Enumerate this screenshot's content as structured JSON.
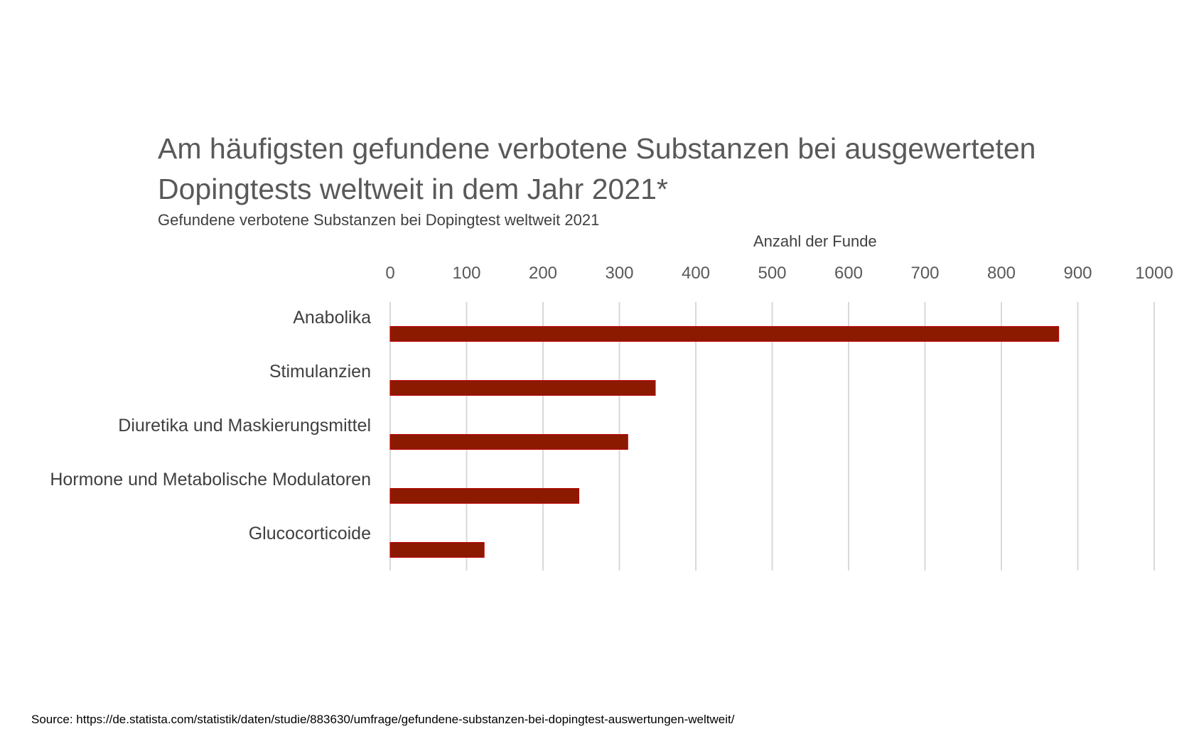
{
  "chart_data": {
    "type": "bar",
    "orientation": "horizontal",
    "title": "Am häufigsten gefundene verbotene Substanzen bei ausgewerteten Dopingtests weltweit in dem Jahr 2021*",
    "title_lines": [
      "Am häufigsten gefundene verbotene Substanzen bei ausgewerteten",
      "Dopingtests weltweit in dem Jahr 2021*"
    ],
    "subtitle": "Gefundene verbotene Substanzen bei Dopingtest weltweit 2021",
    "xlabel": "Anzahl der Funde",
    "ylabel": "",
    "xlim": [
      0,
      1000
    ],
    "xticks": [
      0,
      100,
      200,
      300,
      400,
      500,
      600,
      700,
      800,
      900,
      1000
    ],
    "x_axis_position": "top",
    "grid": true,
    "legend": "none",
    "categories": [
      "Anabolika",
      "Stimulanzien",
      "Diuretika und Maskierungsmittel",
      "Hormone und Metabolische Modulatoren",
      "Glucocorticoide"
    ],
    "series": [
      {
        "values": [
          875,
          347,
          311,
          247,
          123
        ],
        "color": "#8B1A00"
      }
    ]
  },
  "source": "Source: https://de.statista.com/statistik/daten/studie/883630/umfrage/gefundene-substanzen-bei-dopingtest-auswertungen-weltweit/",
  "colors": {
    "bar": "#8B1A00",
    "bar_outline": "#C00000",
    "grid": "#D9D9D9",
    "title": "#595959",
    "text": "#404040"
  }
}
